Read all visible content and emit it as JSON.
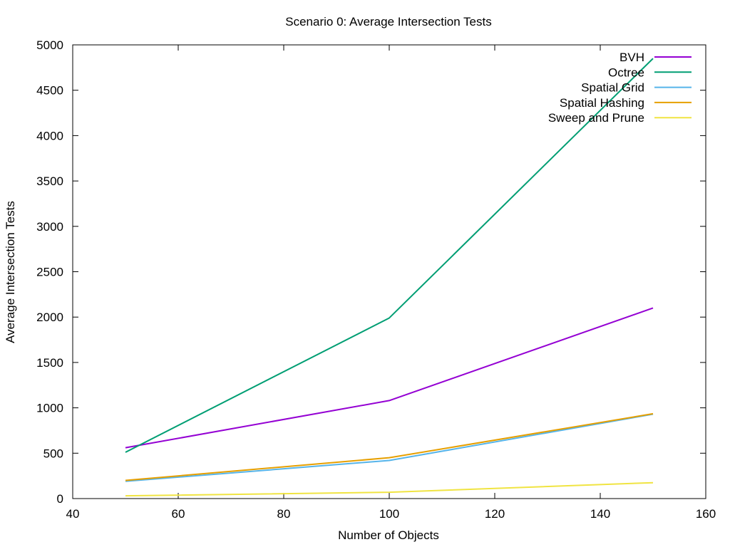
{
  "chart_data": {
    "type": "line",
    "title": "Scenario 0: Average Intersection Tests",
    "xlabel": "Number of Objects",
    "ylabel": "Average Intersection Tests",
    "xlim": [
      40,
      160
    ],
    "ylim": [
      0,
      5000
    ],
    "xticks": [
      "40",
      "60",
      "80",
      "100",
      "120",
      "140",
      "160"
    ],
    "yticks": [
      "0",
      "500",
      "1000",
      "1500",
      "2000",
      "2500",
      "3000",
      "3500",
      "4000",
      "4500",
      "5000"
    ],
    "xtick_values": [
      40,
      60,
      80,
      100,
      120,
      140,
      160
    ],
    "ytick_values": [
      0,
      500,
      1000,
      1500,
      2000,
      2500,
      3000,
      3500,
      4000,
      4500,
      5000
    ],
    "grid": false,
    "legend_position": "top-right",
    "x": [
      50,
      100,
      150
    ],
    "series": [
      {
        "name": "BVH",
        "color": "#9400d3",
        "values": [
          560,
          1080,
          2100
        ]
      },
      {
        "name": "Octree",
        "color": "#009e73",
        "values": [
          510,
          1990,
          4850
        ]
      },
      {
        "name": "Spatial Grid",
        "color": "#56b4e9",
        "values": [
          190,
          420,
          930
        ]
      },
      {
        "name": "Spatial Hashing",
        "color": "#e69f00",
        "values": [
          200,
          450,
          935
        ]
      },
      {
        "name": "Sweep and Prune",
        "color": "#f0e442",
        "values": [
          30,
          70,
          175
        ]
      }
    ]
  }
}
